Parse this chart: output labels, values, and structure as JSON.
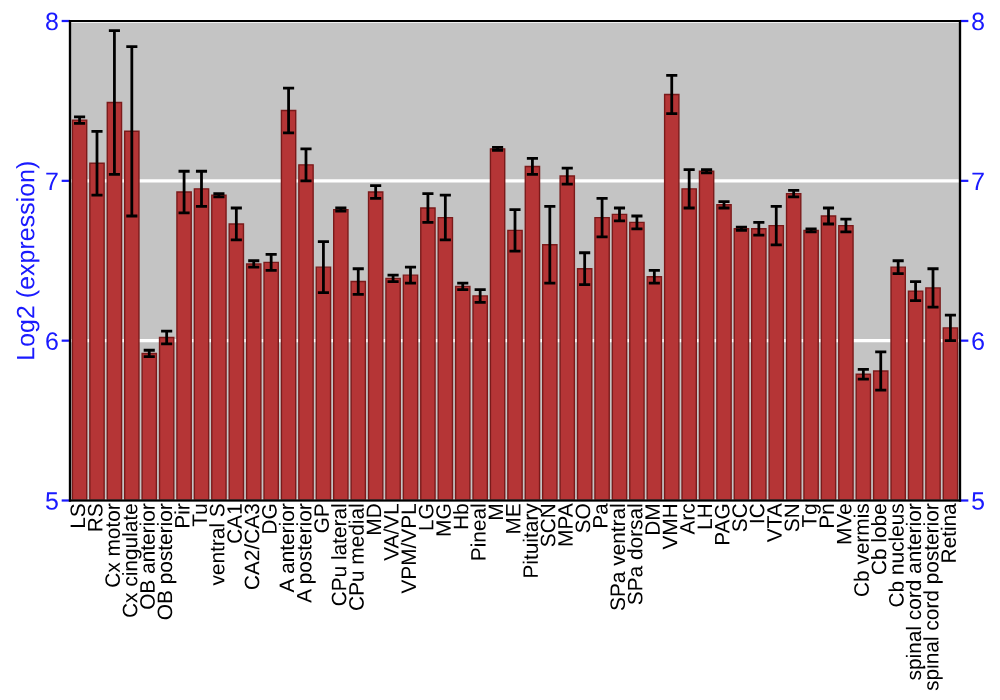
{
  "chart_data": {
    "type": "bar",
    "ylabel": "Log2 (expression)",
    "categories": [
      "LS",
      "RS",
      "Cx motor",
      "Cx cingulate",
      "OB anterior",
      "OB posterior",
      "Pir",
      "Tu",
      "ventral S",
      "CA1",
      "CA2/CA3",
      "DG",
      "A anterior",
      "A posterior",
      "GP",
      "CPu lateral",
      "CPu medial",
      "MD",
      "VA/VL",
      "VPM/VPL",
      "LG",
      "MG",
      "Hb",
      "Pineal",
      "M",
      "ME",
      "Pituitary",
      "SCN",
      "MPA",
      "SO",
      "Pa",
      "SPa ventral",
      "SPa dorsal",
      "DM",
      "VMH",
      "Arc",
      "LH",
      "PAG",
      "SC",
      "IC",
      "VTA",
      "SN",
      "Tg",
      "Pn",
      "MVe",
      "Cb vermis",
      "Cb lobe",
      "Cb nucleus",
      "spinal cord anterior",
      "spinal cord posterior",
      "Retina"
    ],
    "values": [
      7.38,
      7.11,
      7.49,
      7.31,
      5.92,
      6.02,
      6.93,
      6.95,
      6.91,
      6.73,
      6.48,
      6.49,
      7.44,
      7.1,
      6.46,
      6.82,
      6.37,
      6.93,
      6.39,
      6.41,
      6.83,
      6.77,
      6.34,
      6.28,
      7.2,
      6.69,
      7.09,
      6.6,
      7.03,
      6.45,
      6.77,
      6.79,
      6.74,
      6.4,
      7.54,
      6.95,
      7.06,
      6.85,
      6.7,
      6.7,
      6.72,
      6.92,
      6.69,
      6.78,
      6.72,
      5.79,
      5.81,
      6.46,
      6.31,
      6.33,
      6.08
    ],
    "errors": [
      0.02,
      0.2,
      0.45,
      0.53,
      0.02,
      0.04,
      0.13,
      0.11,
      0.01,
      0.1,
      0.02,
      0.05,
      0.14,
      0.1,
      0.16,
      0.01,
      0.08,
      0.04,
      0.02,
      0.05,
      0.09,
      0.14,
      0.02,
      0.04,
      0.01,
      0.13,
      0.05,
      0.24,
      0.05,
      0.1,
      0.12,
      0.04,
      0.04,
      0.04,
      0.12,
      0.12,
      0.01,
      0.02,
      0.01,
      0.04,
      0.12,
      0.02,
      0.01,
      0.05,
      0.04,
      0.03,
      0.12,
      0.04,
      0.06,
      0.12,
      0.08
    ],
    "color": "#b53536",
    "ylim": [
      5,
      8
    ],
    "yticks": [
      5,
      6,
      7,
      8
    ],
    "y2lim": [
      5,
      8
    ],
    "y2ticks": [
      5,
      6,
      7,
      8
    ],
    "grid": "y"
  }
}
